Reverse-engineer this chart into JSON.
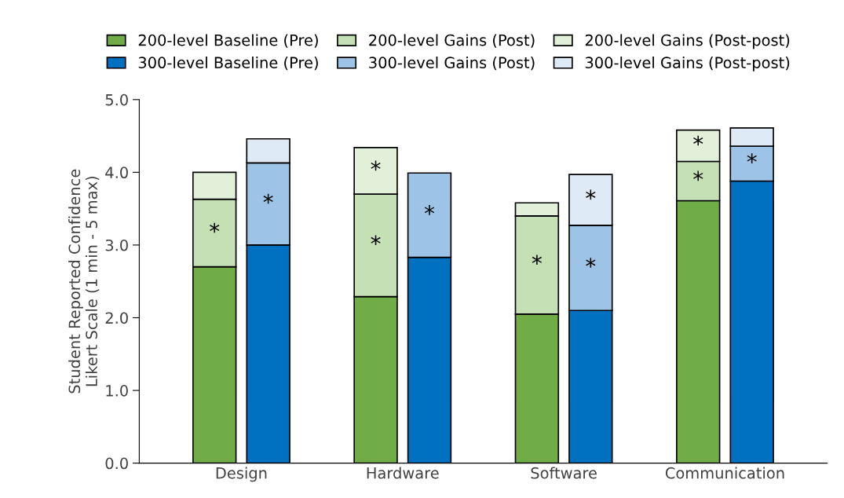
{
  "chart_data": {
    "type": "bar",
    "stacked": true,
    "ylabel": "Student Reported Confidence\nLikert Scale (1 min - 5 max)",
    "categories": [
      null,
      "Design",
      null,
      null,
      null,
      null,
      null,
      "Hardware",
      null,
      null,
      null,
      null,
      null,
      "Software",
      null,
      null,
      null,
      null,
      null,
      "Communication",
      null
    ],
    "ylim": [
      0,
      5
    ],
    "yticks": [
      {
        "value": 0,
        "label": "0.0"
      },
      {
        "value": 1,
        "label": "1.0"
      },
      {
        "value": 2,
        "label": "2.0"
      },
      {
        "value": 3,
        "label": "3.0"
      },
      {
        "value": 4,
        "label": "4.0"
      },
      {
        "value": 5,
        "label": "5.0"
      }
    ],
    "grid": false,
    "legend": "top",
    "series": [
      {
        "name": "200-level Baseline (Pre)",
        "color": "#70ad47",
        "values": [
          2.7,
          null,
          null,
          null,
          null,
          null,
          2.29,
          null,
          null,
          null,
          null,
          null,
          2.05,
          null,
          null,
          null,
          null,
          null,
          3.61,
          null,
          null
        ]
      },
      {
        "name": "200-level Gains (Post)",
        "color": "#c5e0b4",
        "values": [
          0.93,
          null,
          null,
          null,
          null,
          null,
          1.41,
          null,
          null,
          null,
          null,
          null,
          1.35,
          null,
          null,
          null,
          null,
          null,
          0.54,
          null,
          null
        ],
        "value_labels": [
          "*",
          null,
          null,
          null,
          null,
          null,
          "*",
          null,
          null,
          null,
          null,
          null,
          "*",
          null,
          null,
          null,
          null,
          null,
          "*",
          null,
          null
        ]
      },
      {
        "name": "200-level Gains (Post-post)",
        "color": "#e2f0d9",
        "values": [
          0.37,
          null,
          null,
          null,
          null,
          null,
          0.64,
          null,
          null,
          null,
          null,
          null,
          0.18,
          null,
          null,
          null,
          null,
          null,
          0.43,
          null,
          null
        ],
        "value_labels": [
          null,
          null,
          null,
          null,
          null,
          null,
          "*",
          null,
          null,
          null,
          null,
          null,
          null,
          null,
          null,
          null,
          null,
          null,
          "*",
          null,
          null
        ]
      },
      {
        "name": "300-level Baseline (Pre)",
        "color": "#0070c0",
        "values": [
          null,
          null,
          3.0,
          null,
          null,
          null,
          null,
          null,
          2.83,
          null,
          null,
          null,
          null,
          null,
          2.1,
          null,
          null,
          null,
          null,
          null,
          3.88
        ]
      },
      {
        "name": "300-level Gains (Post)",
        "color": "#9dc3e6",
        "values": [
          null,
          null,
          1.13,
          null,
          null,
          null,
          null,
          null,
          1.16,
          null,
          null,
          null,
          null,
          null,
          1.17,
          null,
          null,
          null,
          null,
          null,
          0.48
        ],
        "value_labels": [
          null,
          null,
          "*",
          null,
          null,
          null,
          null,
          null,
          "*",
          null,
          null,
          null,
          null,
          null,
          "*",
          null,
          null,
          null,
          null,
          null,
          "*"
        ]
      },
      {
        "name": "300-level Gains (Post-post)",
        "color": "#deebf7",
        "values": [
          null,
          null,
          0.33,
          null,
          null,
          null,
          null,
          null,
          null,
          null,
          null,
          null,
          null,
          null,
          0.7,
          null,
          null,
          null,
          null,
          null,
          0.25
        ],
        "value_labels": [
          null,
          null,
          null,
          null,
          null,
          null,
          null,
          null,
          null,
          null,
          null,
          null,
          null,
          null,
          "*",
          null,
          null,
          null,
          null,
          null,
          null
        ]
      }
    ]
  }
}
